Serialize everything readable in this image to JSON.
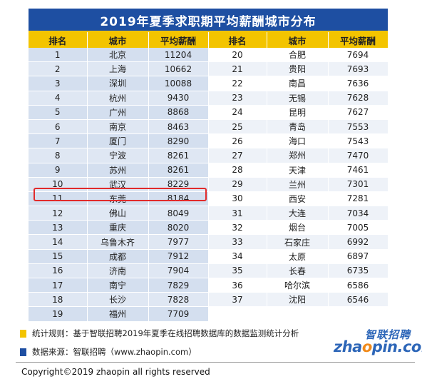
{
  "title": "2019年夏季求职期平均薪酬城市分布",
  "headers": [
    "排名",
    "城市",
    "平均薪酬",
    "排名",
    "城市",
    "平均薪酬"
  ],
  "rows": [
    [
      "1",
      "北京",
      "11204",
      "20",
      "合肥",
      "7694"
    ],
    [
      "2",
      "上海",
      "10662",
      "21",
      "贵阳",
      "7693"
    ],
    [
      "3",
      "深圳",
      "10088",
      "22",
      "南昌",
      "7636"
    ],
    [
      "4",
      "杭州",
      "9430",
      "23",
      "无锡",
      "7628"
    ],
    [
      "5",
      "广州",
      "8868",
      "24",
      "昆明",
      "7627"
    ],
    [
      "6",
      "南京",
      "8463",
      "25",
      "青岛",
      "7553"
    ],
    [
      "7",
      "厦门",
      "8290",
      "26",
      "海口",
      "7543"
    ],
    [
      "8",
      "宁波",
      "8261",
      "27",
      "郑州",
      "7470"
    ],
    [
      "9",
      "苏州",
      "8261",
      "28",
      "天津",
      "7461"
    ],
    [
      "10",
      "武汉",
      "8229",
      "29",
      "兰州",
      "7301"
    ],
    [
      "11",
      "东莞",
      "8184",
      "30",
      "西安",
      "7281"
    ],
    [
      "12",
      "佛山",
      "8049",
      "31",
      "大连",
      "7034"
    ],
    [
      "13",
      "重庆",
      "8020",
      "32",
      "烟台",
      "7005"
    ],
    [
      "14",
      "乌鲁木齐",
      "7977",
      "33",
      "石家庄",
      "6992"
    ],
    [
      "15",
      "成都",
      "7912",
      "34",
      "太原",
      "6897"
    ],
    [
      "16",
      "济南",
      "7904",
      "35",
      "长春",
      "6735"
    ],
    [
      "17",
      "南宁",
      "7829",
      "36",
      "哈尔滨",
      "6586"
    ],
    [
      "18",
      "长沙",
      "7828",
      "37",
      "沈阳",
      "6546"
    ],
    [
      "19",
      "福州",
      "7709",
      "",
      "",
      ""
    ]
  ],
  "highlighted_rank": "11",
  "notes": {
    "rule": "统计规则：基于智联招聘2019年夏季在线招聘数据库的数据监测统计分析",
    "source": "数据来源：智联招聘（www.zhaopin.com）"
  },
  "logo": {
    "cn": "智联招聘",
    "en_pre": "zha",
    "en_o": "o",
    "en_post": "pin.com"
  },
  "copyright": "Copyright©2019 zhaopin all rights reserved",
  "colors": {
    "title_bg": "#1e4fa2",
    "header_bg": "#f3c400",
    "highlight": "#e12b2b",
    "note_rule_marker": "#f3c400",
    "note_source_marker": "#1e4fa2"
  }
}
